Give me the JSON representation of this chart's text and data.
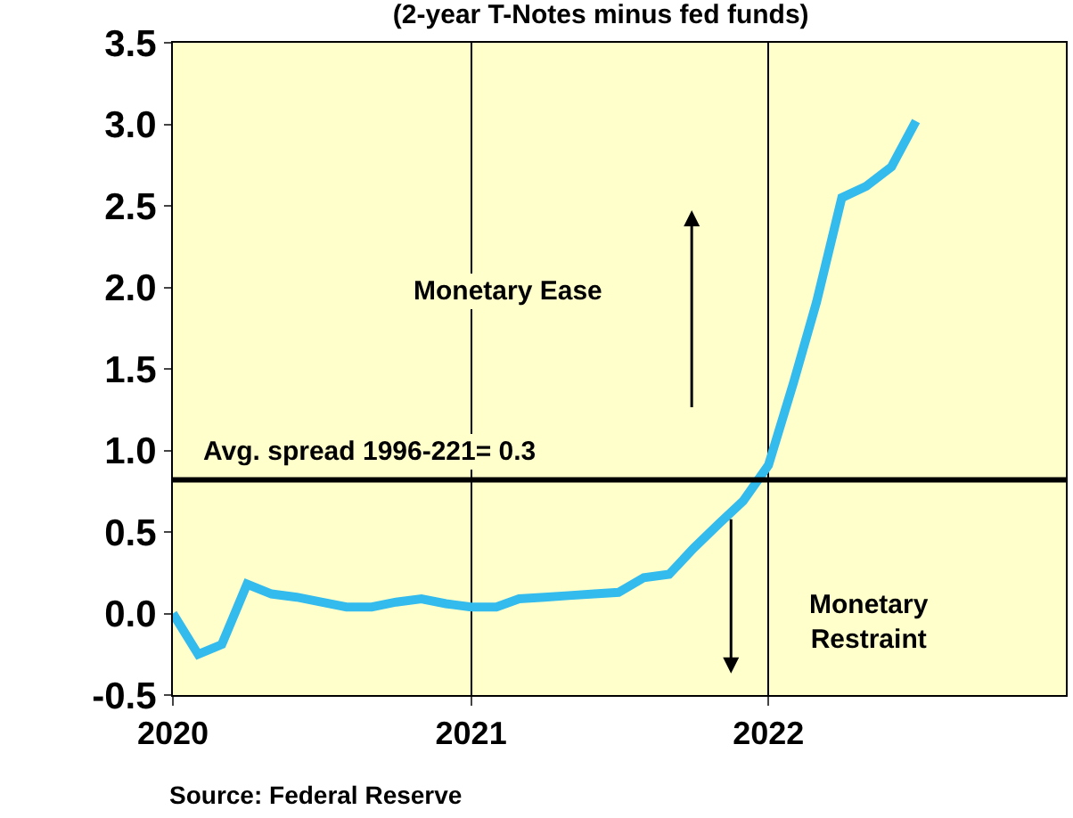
{
  "chart_data": {
    "type": "line",
    "title": "(2-year T-Notes minus fed funds)",
    "x": [
      "2020-01",
      "2020-02",
      "2020-03",
      "2020-04",
      "2020-05",
      "2020-06",
      "2020-07",
      "2020-08",
      "2020-09",
      "2020-10",
      "2020-11",
      "2020-12",
      "2021-01",
      "2021-02",
      "2021-03",
      "2021-04",
      "2021-05",
      "2021-06",
      "2021-07",
      "2021-08",
      "2021-09",
      "2021-10",
      "2021-11",
      "2021-12",
      "2022-01",
      "2022-02",
      "2022-03",
      "2022-04",
      "2022-05",
      "2022-06",
      "2022-07"
    ],
    "series": [
      {
        "color": "#33bbee",
        "values": [
          0.0,
          -0.25,
          -0.19,
          0.18,
          0.12,
          0.1,
          0.07,
          0.04,
          0.04,
          0.07,
          0.09,
          0.06,
          0.04,
          0.04,
          0.09,
          0.1,
          0.11,
          0.12,
          0.13,
          0.22,
          0.24,
          0.4,
          0.55,
          0.69,
          0.91,
          1.42,
          1.91,
          2.55,
          2.62,
          2.74,
          3.02
        ]
      }
    ],
    "xlim": [
      "2020-01-01",
      "2023-01-01"
    ],
    "xticks": [
      {
        "value": "2020-01-01",
        "label": "2020"
      },
      {
        "value": "2021-01-01",
        "label": "2021"
      },
      {
        "value": "2022-01-01",
        "label": "2022"
      }
    ],
    "ylim": [
      -0.5,
      3.5
    ],
    "yticks": [
      -0.5,
      {
        "value": 0,
        "label": "0.0"
      },
      0.5,
      {
        "value": 1,
        "label": "1.0"
      },
      1.5,
      {
        "value": 2,
        "label": "2.0"
      },
      2.5,
      {
        "value": 3,
        "label": "3.0"
      },
      3.5
    ],
    "ref_lines": [
      {
        "axis": "y",
        "value": 0.82,
        "color": "#000000",
        "line_style": "solid"
      }
    ],
    "annotations": [
      "Monetary Ease",
      "Monetary\nRestraint",
      "Source: Federal Reserve",
      "Avg. spread 1996-221= 0.3"
    ],
    "grid": "x",
    "marker": "none",
    "line_style": "solid"
  }
}
